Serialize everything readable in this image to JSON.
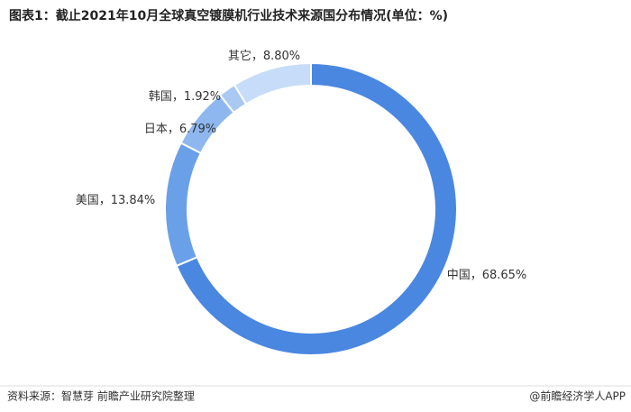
{
  "chart_data": {
    "type": "donut",
    "title": "图表1：截止2021年10月全球真空镀膜机行业技术来源国分布情况(单位：%)",
    "categories": [
      "中国",
      "美国",
      "日本",
      "韩国",
      "其它"
    ],
    "values": [
      68.65,
      13.84,
      6.79,
      1.92,
      8.8
    ],
    "value_labels": [
      "68.65%",
      "13.84%",
      "6.79%",
      "1.92%",
      "8.80%"
    ],
    "label_separator": "，",
    "colors": [
      "#4a87e0",
      "#6aa0e7",
      "#8db7ee",
      "#a9c9f3",
      "#c6dcf8"
    ],
    "source": "资料来源：智慧芽 前瞻产业研究院整理",
    "credit": "@前瞻经济学人APP"
  }
}
